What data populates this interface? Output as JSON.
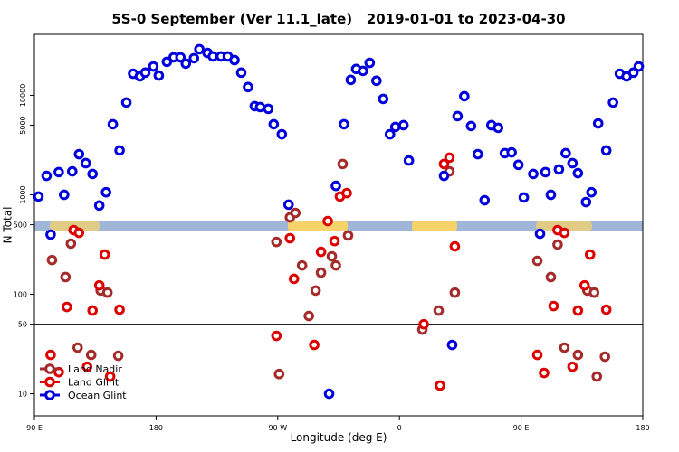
{
  "chart_data": {
    "type": "scatter",
    "title": "5S-0 September (Ver 11.1_late)   2019-01-01 to 2023-04-30",
    "xlabel": "Longitude (deg E)",
    "ylabel": "N Total",
    "xlim": [
      90,
      540
    ],
    "xticks": [
      {
        "value": 90,
        "label": "90 E"
      },
      {
        "value": 180,
        "label": "180"
      },
      {
        "value": 270,
        "label": "90 W"
      },
      {
        "value": 360,
        "label": "0"
      },
      {
        "value": 450,
        "label": "90 E"
      },
      {
        "value": 540,
        "label": "180"
      }
    ],
    "ylim": [
      6,
      41000
    ],
    "ylog": true,
    "yticks": [
      10,
      50,
      100,
      500,
      1000,
      5000,
      10000
    ],
    "hline": 50,
    "legend": "bottom left",
    "series": [
      {
        "name": "Land Nadir",
        "color": "#a52a2a",
        "x": [
          103,
          113,
          117,
          122,
          132,
          139,
          144,
          152,
          269,
          271,
          279,
          283,
          288,
          293,
          298,
          302,
          310,
          313,
          318,
          322,
          377,
          389,
          397,
          401,
          462,
          472,
          477,
          482,
          492,
          499,
          504,
          506,
          512
        ],
        "values": [
          221,
          149,
          323,
          29.1,
          24.6,
          109,
          104,
          24.1,
          336,
          15.8,
          593,
          658,
          195,
          60.5,
          109,
          165,
          241,
          195,
          2040,
          390,
          44.2,
          68.6,
          1720,
          104,
          217,
          149,
          316,
          29.1,
          24.6,
          109,
          104,
          14.9,
          23.6
        ]
      },
      {
        "name": "Land Glint",
        "color": "#dd0000",
        "x": [
          102,
          108,
          114,
          119,
          123,
          129,
          133,
          138,
          142,
          146,
          153,
          269,
          279,
          282,
          297,
          302,
          307,
          312,
          316,
          321,
          378,
          390,
          393,
          397,
          401,
          462,
          467,
          474,
          477,
          482,
          488,
          492,
          497,
          501,
          513
        ],
        "values": [
          24.6,
          16.5,
          74.6,
          442,
          415,
          18.7,
          68.6,
          123,
          251,
          14.9,
          70,
          38.2,
          366,
          143,
          31,
          267,
          544,
          343,
          960,
          1040,
          50,
          12.1,
          2040,
          2360,
          303,
          24.6,
          16.2,
          76.2,
          442,
          415,
          18.7,
          68.6,
          123,
          251,
          70
        ]
      },
      {
        "name": "Ocean Glint",
        "color": "#0000dd",
        "x": [
          93,
          99,
          102,
          108,
          112,
          118,
          123,
          128,
          133,
          138,
          143,
          148,
          153,
          158,
          163,
          168,
          172,
          178,
          182,
          188,
          193,
          198,
          202,
          208,
          212,
          218,
          222,
          228,
          233,
          238,
          243,
          248,
          253,
          257,
          263,
          267,
          273,
          278,
          308,
          313,
          319,
          324,
          328,
          333,
          338,
          343,
          348,
          353,
          357,
          363,
          367,
          393,
          399,
          403,
          408,
          413,
          418,
          423,
          428,
          433,
          438,
          443,
          448,
          452,
          459,
          464,
          468,
          472,
          478,
          483,
          488,
          492,
          498,
          502,
          507,
          513,
          518,
          523,
          528,
          533,
          537
        ],
        "values": [
          960,
          1550,
          398,
          1690,
          1000,
          1720,
          2560,
          2080,
          1620,
          780,
          1060,
          5120,
          2790,
          8460,
          16500,
          15500,
          16900,
          19500,
          15800,
          21700,
          24100,
          24100,
          20800,
          23600,
          29100,
          26700,
          24600,
          24600,
          24600,
          22600,
          16900,
          12100,
          7780,
          7620,
          7310,
          5120,
          4060,
          795,
          10,
          1230,
          5120,
          14300,
          18400,
          17600,
          21200,
          14000,
          9200,
          4060,
          4810,
          5010,
          2210,
          1550,
          31,
          6180,
          9790,
          4910,
          2560,
          881,
          5010,
          4710,
          2620,
          2670,
          2000,
          940,
          1620,
          406,
          1690,
          1000,
          1800,
          2620,
          2080,
          1650,
          845,
          1060,
          5220,
          2790,
          8460,
          16500,
          15500,
          16900,
          19500
        ]
      }
    ]
  }
}
